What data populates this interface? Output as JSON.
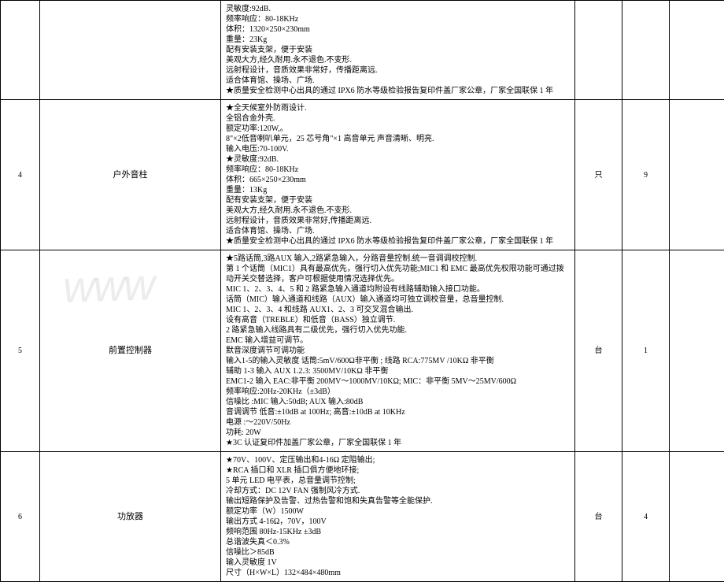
{
  "rows": [
    {
      "num": "",
      "name": "",
      "unit": "",
      "qty": "",
      "spec": [
        "灵敏度:92dB.",
        "频率响应：80-18KHz",
        "体积：1320×250×230mm",
        "重量：23Kg",
        "配有安装支架，便于安装",
        "美观大方,经久耐用.永不退色.不变形.",
        "远射程设计，音质效果非常好，传播距离远.",
        "适合体育馆、操场、广场.",
        "★质量安全检测中心出具的通过 IPX6 防水等级检验报告复印件盖厂家公章，厂家全国联保 1 年"
      ]
    },
    {
      "num": "4",
      "name": "户外音柱",
      "unit": "只",
      "qty": "9",
      "spec": [
        "★全天候室外防雨设计.",
        "全铝合金外壳.",
        "额定功率:120W,。",
        "8\"×2低音喇叭单元，25 芯号角\"×1 高音单元                                                                                      声音清晰、明亮.",
        "输入电压:70-100V.",
        "★灵敏度:92dB.",
        "频率响应：80-18KHz",
        "体积：665×250×230mm",
        "重量：13Kg",
        "配有安装支架，便于安装",
        "美观大方,经久耐用.永不退色.不变形.",
        "远射程设计，音质效果非常好,传播距离远.",
        "适合体育馆、操场、广场.",
        "★质量安全检测中心出具的通过 IPX6 防水等级检验报告复印件盖厂家公章，厂家全国联保 1 年"
      ]
    },
    {
      "num": "5",
      "name": "前置控制器",
      "unit": "台",
      "qty": "1",
      "spec": [
        "★5路话筒,3路AUX 输入,2路紧急输入，分路音量控制.统一音调调校控制.",
        "第 1 个话筒（MIC1）具有最高优先，强行切入优先功能;MIC1 和 EMC 最高优先权限功能可通过拨动开关交替选择，客户可根据使用情况选择优先。",
        "MIC 1、2、3、4、5 和 2 路紧急输入通道均附设有线路辅助输入接口功能。",
        "话筒（MIC）输入通道和线路（AUX）输入通道均可独立调校音量，总音量控制.",
        "MIC 1、2、3、4 和线路 AUX1、2、3 可交叉混合输出.",
        "设有高音（TREBLE）和低音（BASS）独立调节.",
        "2 路紧急输入线路具有二级优先，强行切入优先功能.",
        "EMC 输入增益可调节。",
        "默音深度调节可调功能",
        "输入1-5的输入灵敏度   话筒:5mV/600Ω非平衡 ; 线路 RCA:775MV /10KΩ 非平衡",
        "辅助 1-3 输入 AUX 1.2.3: 3500MV/10KΩ 非平衡",
        "EMC1-2 输入 EAC:非平衡 200MV～1000MV/10KΩ; MIC：非平衡 5MV～25MV/600Ω",
        "频率响应:20Hz-20KHz（±3dB）",
        "信噪比 :MIC 输入:50dB;   AUX 输入:80dB",
        "音调调节 低音:±10dB at 100Hz;  高音:±10dB at 10KHz",
        "电源 :～220V/50Hz",
        "功耗: 20W",
        "★3C 认证复印件加盖厂家公章，厂家全国联保 1 年"
      ]
    },
    {
      "num": "6",
      "name": "功放器",
      "unit": "台",
      "qty": "4",
      "spec": [
        "★70V、100V、定压输出和4-16Ω 定阻输出;",
        "★RCA 插口和 XLR 插口俱方便地环接;",
        "5 单元 LED 电平表，总音量调节控制;",
        "冷却方式：DC 12V FAN 强制风冷方式.",
        "输出短路保护及告警、过热告警和饱和失真告警等全能保护.",
        "额定功率（W）1500W",
        "输出方式 4-16Ω，70V，100V",
        "频响范围 80Hz-15KHz  ±3dB",
        "总谐波失真＜0.3%",
        "信噪比＞85dB",
        "输入灵敏度 1V",
        "尺寸（H×W×L）132×484×480mm"
      ]
    }
  ]
}
